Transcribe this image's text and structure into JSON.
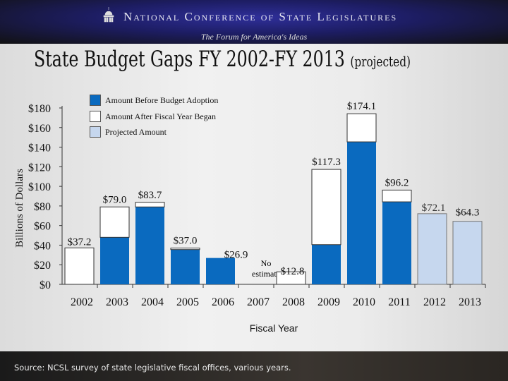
{
  "header": {
    "org": "National Conference of State Legislatures",
    "tagline": "The Forum for America's Ideas"
  },
  "title": {
    "main": "State Budget Gaps FY 2002-FY 2013",
    "suffix": "(projected)"
  },
  "footer": {
    "source": "Source: NCSL survey of state legislative fiscal offices, various years."
  },
  "chart_data": {
    "type": "bar",
    "stacked": true,
    "xlabel": "Fiscal Year",
    "ylabel": "Billions of Dollars",
    "ylim": [
      0,
      180
    ],
    "yticks": [
      "$0",
      "$20",
      "$40",
      "$60",
      "$80",
      "$100",
      "$120",
      "$140",
      "$160",
      "$180"
    ],
    "categories": [
      "2002",
      "2003",
      "2004",
      "2005",
      "2006",
      "2007",
      "2008",
      "2009",
      "2010",
      "2011",
      "2012",
      "2013"
    ],
    "series": [
      {
        "name": "Amount Before Budget Adoption",
        "color": "#0a6abf",
        "values": [
          0,
          48,
          79,
          35.5,
          26.9,
          null,
          0,
          40.5,
          145.4,
          84.2,
          0,
          0
        ]
      },
      {
        "name": "Amount After Fiscal Year Began",
        "color": "#ffffff",
        "values": [
          37.2,
          31,
          4.7,
          1.5,
          0,
          null,
          12.8,
          76.8,
          28.7,
          12,
          0,
          0
        ]
      },
      {
        "name": "Projected Amount",
        "color": "#c6d7ee",
        "values": [
          0,
          0,
          0,
          0,
          0,
          null,
          0,
          0,
          0,
          0,
          72.1,
          64.3
        ]
      }
    ],
    "data_labels": [
      "$37.2",
      "$79.0",
      "$83.7",
      "$37.0",
      "$26.9",
      "No estimate",
      "$12.8",
      "$117.3",
      "$174.1",
      "$96.2",
      "$72.1",
      "$64.3"
    ],
    "legend": "top-left"
  }
}
